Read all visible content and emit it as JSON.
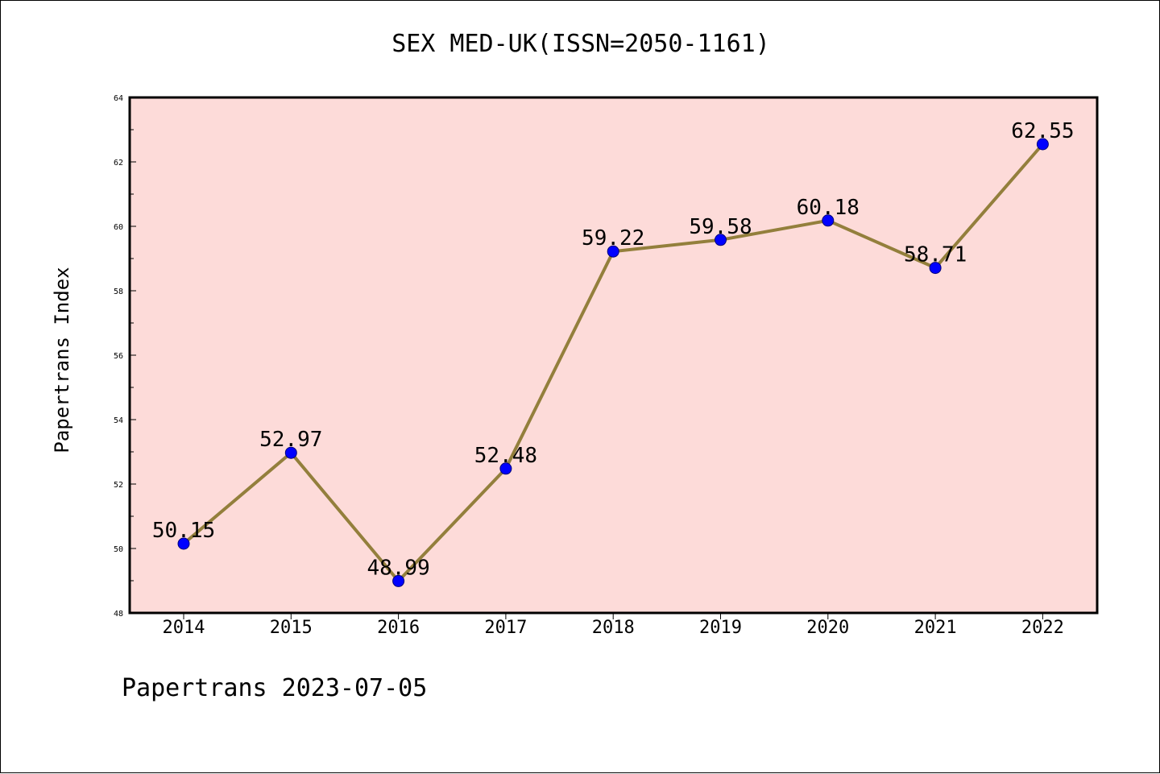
{
  "title": "SEX MED-UK(ISSN=2050-1161)",
  "footer": "Papertrans 2023-07-05",
  "colors": {
    "plot_bg": "#fddbd9",
    "line": "#937f3c",
    "marker": "#0000ff",
    "axis": "#000000"
  },
  "chart_data": {
    "type": "line",
    "title": "SEX MED-UK(ISSN=2050-1161)",
    "xlabel": "",
    "ylabel": "Papertrans Index",
    "categories": [
      "2014",
      "2015",
      "2016",
      "2017",
      "2018",
      "2019",
      "2020",
      "2021",
      "2022"
    ],
    "values": [
      50.15,
      52.97,
      48.99,
      52.48,
      59.22,
      59.58,
      60.18,
      58.71,
      62.55
    ],
    "data_labels": [
      "50.15",
      "52.97",
      "48.99",
      "52.48",
      "59.22",
      "59.58",
      "60.18",
      "58.71",
      "62.55"
    ],
    "ylim": [
      48,
      64
    ],
    "yticks": [
      48,
      50,
      52,
      54,
      56,
      58,
      60,
      62,
      64
    ],
    "y_minor_step": 1,
    "grid": false,
    "legend": "none"
  }
}
